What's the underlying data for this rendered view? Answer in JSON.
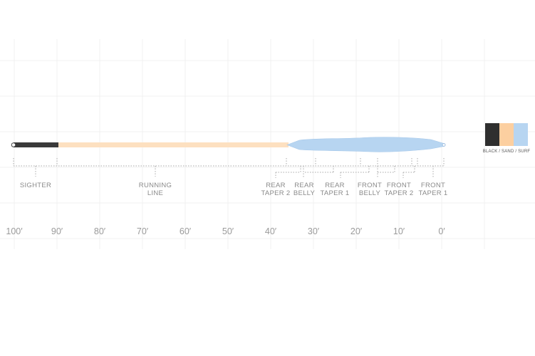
{
  "segments": [
    {
      "id": "sighter",
      "lines": [
        "SIGHTER"
      ]
    },
    {
      "id": "running-line",
      "lines": [
        "RUNNING",
        "LINE"
      ]
    },
    {
      "id": "rear-taper-2",
      "lines": [
        "REAR",
        "TAPER 2"
      ]
    },
    {
      "id": "rear-belly",
      "lines": [
        "REAR",
        "BELLY"
      ]
    },
    {
      "id": "rear-taper-1",
      "lines": [
        "REAR",
        "TAPER 1"
      ]
    },
    {
      "id": "front-belly",
      "lines": [
        "FRONT",
        "BELLY"
      ]
    },
    {
      "id": "front-taper-2",
      "lines": [
        "FRONT",
        "TAPER 2"
      ]
    },
    {
      "id": "front-taper-1",
      "lines": [
        "FRONT",
        "TAPER 1"
      ]
    }
  ],
  "scale_labels": [
    "100′",
    "90′",
    "80′",
    "70′",
    "60′",
    "50′",
    "40′",
    "30′",
    "20′",
    "10′",
    "0′"
  ],
  "colors": {
    "sighter": "#3a3a3a",
    "running_line": "#fde0c0",
    "head": "#b7d5f1",
    "head_edge": "#a6c8ea",
    "swatch_black": "#2f2f2f",
    "swatch_sand": "#fccfa0",
    "swatch_surf": "#b7d5f1"
  },
  "swatch_label": "BLACK / SAND / SURF"
}
